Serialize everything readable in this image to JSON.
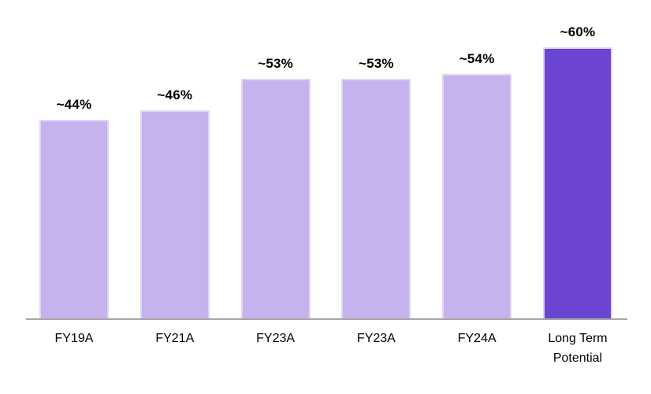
{
  "chart_data": {
    "type": "bar",
    "categories": [
      "FY19A",
      "FY21A",
      "FY23A",
      "FY23A",
      "FY24A",
      "Long Term Potential"
    ],
    "values": [
      44,
      46,
      53,
      53,
      54,
      60
    ],
    "value_labels": [
      "~44%",
      "~46%",
      "~53%",
      "~53%",
      "~54%",
      "~60%"
    ],
    "title": "",
    "xlabel": "",
    "ylabel": "",
    "ylim": [
      0,
      70
    ],
    "grid": false,
    "legend": false,
    "bar_colors": [
      "#c6b2ec",
      "#c6b2ec",
      "#c6b2ec",
      "#c6b2ec",
      "#c6b2ec",
      "#6b44d1"
    ],
    "bar_border_color": "#ded5f6",
    "highlight_index": 5,
    "highlight_color": "#6b44d1",
    "base_color": "#c6b2ec",
    "axis_line_color": "#a6a6a6",
    "label_color": "#000000"
  }
}
